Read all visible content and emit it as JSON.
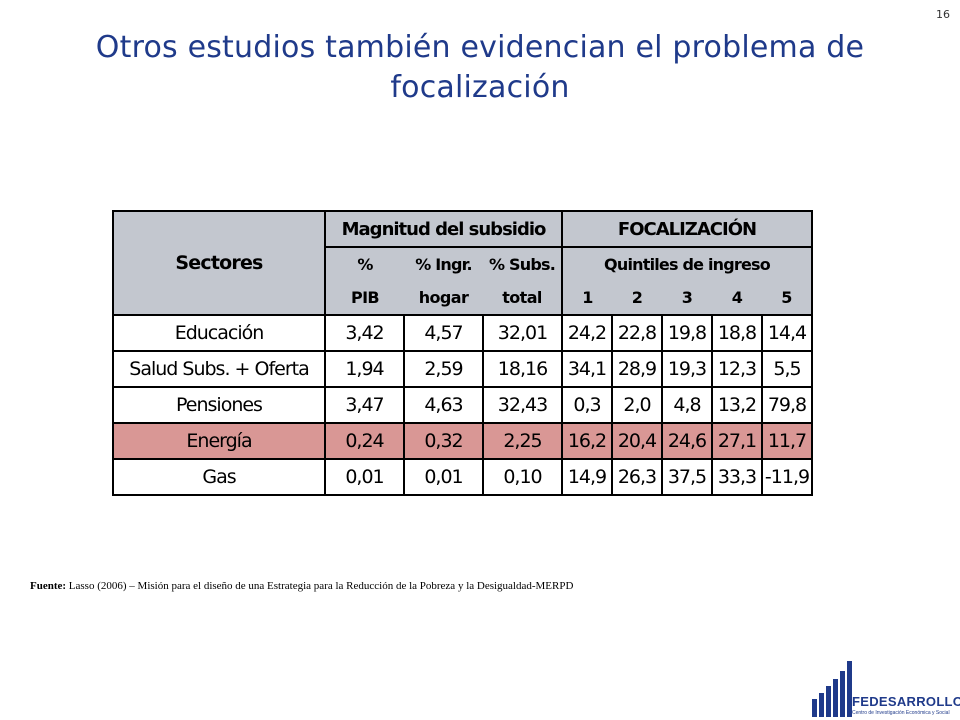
{
  "page_number": "16",
  "title_line1": "Otros estudios también evidencian el problema de",
  "title_line2": "focalización",
  "table": {
    "header": {
      "sectores": "Sectores",
      "magnitud": "Magnitud del subsidio",
      "focalizacion": "FOCALIZACIÓN",
      "col1_top": "%",
      "col1_bottom": "PIB",
      "col2_top": "% Ingr.",
      "col2_bottom": "hogar",
      "col3_top": "% Subs.",
      "col3_bottom": "total",
      "quintiles": "Quintiles de ingreso",
      "q": [
        "1",
        "2",
        "3",
        "4",
        "5"
      ]
    },
    "rows": [
      {
        "sector": "Educación",
        "values": [
          "3,42",
          "4,57",
          "32,01",
          "24,2",
          "22,8",
          "19,8",
          "18,8",
          "14,4"
        ]
      },
      {
        "sector": "Salud Subs. + Oferta",
        "values": [
          "1,94",
          "2,59",
          "18,16",
          "34,1",
          "28,9",
          "19,3",
          "12,3",
          "5,5"
        ]
      },
      {
        "sector": "Pensiones",
        "values": [
          "3,47",
          "4,63",
          "32,43",
          "0,3",
          "2,0",
          "4,8",
          "13,2",
          "79,8"
        ]
      },
      {
        "sector": "Energía",
        "values": [
          "0,24",
          "0,32",
          "2,25",
          "16,2",
          "20,4",
          "24,6",
          "27,1",
          "11,7"
        ]
      },
      {
        "sector": "Gas",
        "values": [
          "0,01",
          "0,01",
          "0,10",
          "14,9",
          "26,3",
          "37,5",
          "33,3",
          "-11,9"
        ]
      }
    ]
  },
  "source_label": "Fuente:",
  "source_text": "Lasso (2006) – Misión para el diseño de una Estrategia para la Reducción de la Pobreza y la Desigualdad-MERPD",
  "logo_text": "FEDESARROLLO",
  "logo_subtext": "Centro de Investigación Económica y Social",
  "colors": {
    "title": "#1f3a8a",
    "header_bg": "#c3c7cf",
    "highlight_row": "#d99795"
  }
}
